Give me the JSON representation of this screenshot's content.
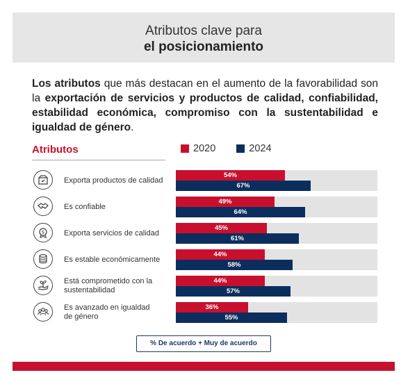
{
  "header": {
    "line1": "Atributos clave para",
    "line2": "el posicionamiento"
  },
  "intro": {
    "segments": [
      {
        "text": "Los atributos",
        "bold": true
      },
      {
        "text": " que más destacan en el aumento de la favorabilidad son la ",
        "bold": false
      },
      {
        "text": "exportación de servicios y productos de calidad, confiabilidad, estabilidad económica, compromiso con la sustentabilidad e igualdad de género",
        "bold": true
      },
      {
        "text": ".",
        "bold": false
      }
    ]
  },
  "colors": {
    "y2020": "#c8102e",
    "y2024": "#0b2e5e",
    "track": "#e3e3e3",
    "accent": "#c8102e"
  },
  "chart_data": {
    "type": "bar",
    "orientation": "horizontal",
    "title": "Atributos",
    "categories": [
      "Exporta productos de calidad",
      "Es confiable",
      "Exporta servicios de calidad",
      "Es estable económicamente",
      "Está comprometido con la sustentabilidad",
      "Es avanzado en igualdad de género"
    ],
    "icons": [
      "box-quality-icon",
      "handshake-icon",
      "dollar-badge-icon",
      "coins-icon",
      "plant-hand-icon",
      "people-group-icon"
    ],
    "series": [
      {
        "name": "2020",
        "values": [
          54,
          49,
          45,
          44,
          44,
          36
        ],
        "labels": [
          "54%",
          "49%",
          "45%",
          "44%",
          "44%",
          "36%"
        ]
      },
      {
        "name": "2024",
        "values": [
          67,
          64,
          61,
          58,
          57,
          55
        ],
        "labels": [
          "67%",
          "64%",
          "61%",
          "58%",
          "57%",
          "55%"
        ]
      }
    ],
    "xlim": [
      0,
      100
    ],
    "unit": "%",
    "legend": "top",
    "note": "% De acuerdo + Muy de acuerdo"
  }
}
